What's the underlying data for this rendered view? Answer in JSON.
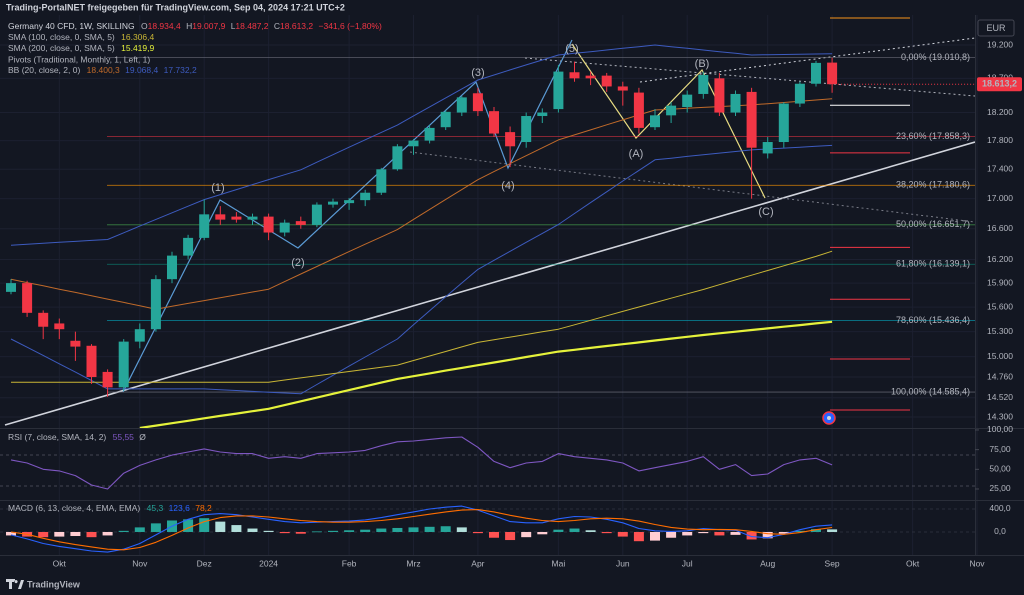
{
  "chart_data": {
    "type": "candlestick",
    "source_note": "Trading-PortalNET freigegeben für TradingView.com, Sep 04, 2024 17:21 UTC+2",
    "title": "Germany 40 CFD, 1W, SKILLING",
    "ohlc": [
      {
        "key": "O",
        "value": "18.934,4"
      },
      {
        "key": "H",
        "value": "19.007,9"
      },
      {
        "key": "L",
        "value": "18.487,2"
      },
      {
        "key": "C",
        "value": "18.613,2"
      }
    ],
    "change_label": "−341,6 (−1,80%)",
    "currency": "EUR",
    "price_label": "18.613,2",
    "brand": "TradingView",
    "log_scale": true,
    "grid": true,
    "ylim": [
      14176,
      19662
    ],
    "yticks": [
      {
        "value": 19200,
        "label": "19.200"
      },
      {
        "value": 18700,
        "label": "18.700"
      },
      {
        "value": 18200,
        "label": "18.200"
      },
      {
        "value": 17800,
        "label": "17.800"
      },
      {
        "value": 17400,
        "label": "17.400"
      },
      {
        "value": 17000,
        "label": "17.000"
      },
      {
        "value": 16600,
        "label": "16.600"
      },
      {
        "value": 16200,
        "label": "16.200"
      },
      {
        "value": 15900,
        "label": "15.900"
      },
      {
        "value": 15600,
        "label": "15.600"
      },
      {
        "value": 15300,
        "label": "15.300"
      },
      {
        "value": 15000,
        "label": "15.000"
      },
      {
        "value": 14760,
        "label": "14.760"
      },
      {
        "value": 14520,
        "label": "14.520"
      },
      {
        "value": 14300,
        "label": "14.300"
      }
    ],
    "categories": [
      null,
      null,
      null,
      "Okt",
      null,
      null,
      null,
      null,
      "Nov",
      null,
      null,
      null,
      "Dez",
      null,
      null,
      null,
      "2024",
      null,
      null,
      null,
      null,
      "Feb",
      null,
      null,
      null,
      "Mrz",
      null,
      null,
      null,
      "Apr",
      null,
      null,
      null,
      null,
      "Mai",
      null,
      null,
      null,
      "Jun",
      null,
      null,
      null,
      "Jul",
      null,
      null,
      null,
      null,
      "Aug",
      null,
      null,
      null,
      "Sep",
      null,
      null,
      null,
      null,
      "Okt",
      null,
      null,
      null,
      "Nov"
    ],
    "up_color": "#26a69a",
    "down_color": "#f23645",
    "open": [
      15790,
      15900,
      15530,
      15400,
      15190,
      15130,
      14820,
      14640,
      15180,
      15330,
      15950,
      16250,
      16480,
      16790,
      16760,
      16720,
      16760,
      16550,
      16700,
      16650,
      16920,
      16940,
      16980,
      17080,
      17400,
      17720,
      17800,
      17990,
      18200,
      18480,
      18220,
      17920,
      17780,
      18150,
      18250,
      18790,
      18740,
      18740,
      18580,
      18490,
      17990,
      18160,
      18280,
      18470,
      18700,
      18200,
      18500,
      17620,
      17780,
      18330,
      18620,
      18934.4,
      null,
      null,
      null,
      null,
      null,
      null,
      null,
      null,
      null
    ],
    "high": [
      15950,
      15930,
      15560,
      15460,
      15300,
      15150,
      14850,
      15210,
      15400,
      16000,
      16300,
      16520,
      16990,
      16900,
      16820,
      16800,
      16800,
      16720,
      16760,
      16950,
      17000,
      17010,
      17120,
      17420,
      17750,
      17820,
      18020,
      18230,
      18440,
      18560,
      18280,
      18000,
      18200,
      18260,
      18900,
      18950,
      18800,
      18780,
      18650,
      18560,
      18250,
      18350,
      18520,
      18800,
      18780,
      18520,
      18560,
      17850,
      18350,
      18650,
      18960,
      19007.9,
      null,
      null,
      null,
      null,
      null,
      null,
      null,
      null,
      null
    ],
    "low": [
      15760,
      15480,
      15210,
      15210,
      14950,
      14680,
      14530,
      14600,
      15100,
      15300,
      15900,
      16200,
      16450,
      16650,
      16680,
      16650,
      16450,
      16500,
      16600,
      16620,
      16880,
      16850,
      16900,
      17050,
      17380,
      17600,
      17760,
      17950,
      18150,
      18150,
      17850,
      17430,
      17700,
      18050,
      18200,
      18650,
      18600,
      18500,
      18300,
      17900,
      17950,
      18050,
      18200,
      18400,
      18150,
      18150,
      17000,
      17550,
      17700,
      18280,
      18580,
      18487.2,
      null,
      null,
      null,
      null,
      null,
      null,
      null,
      null,
      null
    ],
    "close": [
      15900,
      15530,
      15360,
      15330,
      15120,
      14760,
      14640,
      15180,
      15330,
      15950,
      16250,
      16480,
      16790,
      16720,
      16720,
      16760,
      16550,
      16680,
      16650,
      16920,
      16960,
      16980,
      17080,
      17400,
      17720,
      17800,
      17980,
      18210,
      18420,
      18220,
      17900,
      17720,
      18150,
      18200,
      18800,
      18700,
      18700,
      18580,
      18520,
      17980,
      18160,
      18300,
      18460,
      18750,
      18200,
      18470,
      17700,
      17780,
      18330,
      18620,
      18930,
      18613.2,
      null,
      null,
      null,
      null,
      null,
      null,
      null,
      null,
      null
    ],
    "overlays": [
      {
        "name": "SMA (100, close, 0, SMA, 5)",
        "color": "#c9b635",
        "width": 1,
        "last_value_label": "16.306,4",
        "values": [
          14700,
          14700,
          14700,
          14700,
          14700,
          14700,
          14700,
          14700,
          14700,
          14700,
          14700,
          14700,
          14700,
          14700,
          14700,
          14700,
          14700,
          14725,
          14750,
          14775,
          14800,
          14825,
          14850,
          14875,
          14900,
          14954,
          15008,
          15062,
          15116,
          15170,
          15202,
          15234,
          15266,
          15298,
          15330,
          15384,
          15439,
          15493,
          15548,
          15602,
          15657,
          15711,
          15766,
          15820,
          15880,
          15940,
          16000,
          16060,
          16120,
          16180,
          16240,
          16306.4,
          null,
          null,
          null,
          null,
          null,
          null,
          null,
          null,
          null
        ]
      },
      {
        "name": "SMA (200, close, 0, SMA, 5)",
        "color": "#e5f23b",
        "width": 2.2,
        "last_value_label": "15.419,9",
        "values": [
          null,
          null,
          null,
          null,
          null,
          null,
          null,
          null,
          14176,
          14203,
          14230,
          14257,
          14285,
          14312,
          14339,
          14366,
          14393,
          14436,
          14479,
          14522,
          14565,
          14608,
          14652,
          14695,
          14738,
          14770,
          14802,
          14835,
          14867,
          14899,
          14931,
          14963,
          14996,
          15028,
          15060,
          15082,
          15104,
          15127,
          15149,
          15171,
          15193,
          15216,
          15238,
          15260,
          15280,
          15300,
          15320,
          15340,
          15360,
          15380,
          15400,
          15419.9,
          null,
          null,
          null,
          null,
          null,
          null,
          null,
          null,
          null
        ]
      }
    ],
    "bollinger": {
      "name": "BB (20, close, 2, 0)",
      "lines": [
        {
          "color": "#c06a2a",
          "last_value_label": "18.400,3",
          "values": [
            15948,
            15907,
            15866,
            15824,
            15783,
            15742,
            15700,
            15659,
            15617,
            15575,
            15610,
            15646,
            15681,
            15717,
            15752,
            15788,
            15823,
            15919,
            16015,
            16110,
            16206,
            16302,
            16398,
            16493,
            16589,
            16723,
            16856,
            16990,
            17123,
            17257,
            17368,
            17478,
            17589,
            17699,
            17810,
            17881,
            17952,
            18024,
            18095,
            18166,
            18237,
            18249,
            18261,
            18274,
            18286,
            18298,
            18310,
            18328,
            18346,
            18364,
            18382,
            18400.3,
            null,
            null,
            null,
            null,
            null,
            null,
            null,
            null,
            null
          ]
        },
        {
          "color": "#3d5bbf",
          "last_value_label": "19.068,4",
          "values": [
            16385,
            16397,
            16410,
            16422,
            16434,
            16447,
            16459,
            16547,
            16635,
            16723,
            16811,
            16899,
            16987,
            17055,
            17122,
            17190,
            17258,
            17325,
            17393,
            17498,
            17602,
            17707,
            17811,
            17916,
            18020,
            18151,
            18282,
            18413,
            18544,
            18675,
            18750,
            18825,
            18900,
            18974,
            19049,
            19074,
            19099,
            19124,
            19150,
            19175,
            19200,
            19175,
            19150,
            19124,
            19099,
            19074,
            19049,
            19053,
            19057,
            19060,
            19064,
            19068.4,
            null,
            null,
            null,
            null,
            null,
            null,
            null,
            null,
            null
          ]
        },
        {
          "color": "#3d5bbf",
          "last_value_label": "17.732,2",
          "values": [
            15211,
            15113,
            15015,
            14916,
            14818,
            14720,
            14622,
            14622,
            14622,
            14622,
            14622,
            14622,
            14622,
            14612,
            14603,
            14593,
            14584,
            14574,
            14565,
            14673,
            14780,
            14888,
            14996,
            15103,
            15211,
            15384,
            15556,
            15729,
            15901,
            16074,
            16190,
            16306,
            16423,
            16539,
            16655,
            16801,
            16947,
            17093,
            17239,
            17385,
            17531,
            17554,
            17578,
            17601,
            17624,
            17647,
            17670,
            17682,
            17695,
            17707,
            17720,
            17732.2,
            null,
            null,
            null,
            null,
            null,
            null,
            null,
            null,
            null
          ]
        }
      ]
    },
    "pivots": {
      "name": "Pivots (Traditional, Monthly, 1, Left, 1)",
      "levels": [
        {
          "price": 19615,
          "color": "#f7931a"
        },
        {
          "price": 18306,
          "color": "#ffffff"
        },
        {
          "price": 17627,
          "color": "#f23645"
        },
        {
          "price": 16356,
          "color": "#f23645"
        },
        {
          "price": 15698,
          "color": "#f23645"
        },
        {
          "price": 14972,
          "color": "#f23645"
        },
        {
          "price": 14380,
          "color": "#f23645"
        }
      ]
    },
    "fib_levels": [
      {
        "label": "0,00% (19.010,8)",
        "price": 19010.8,
        "color": "#787b86"
      },
      {
        "label": "23,60% (17.858,3)",
        "price": 17858.3,
        "color": "#f23645"
      },
      {
        "label": "38,20% (17.180,6)",
        "price": 17180.6,
        "color": "#ff9800"
      },
      {
        "label": "50,00% (16.651,7)",
        "price": 16651.7,
        "color": "#4caf50"
      },
      {
        "label": "61,80% (16.139,1)",
        "price": 16139.1,
        "color": "#089981"
      },
      {
        "label": "78,60% (15.436,4)",
        "price": 15436.4,
        "color": "#00bcd4"
      },
      {
        "label": "100,00% (14.585,4)",
        "price": 14585.4,
        "color": "#787b86"
      }
    ],
    "wave_labels": [
      {
        "text": "(1)",
        "color": "#5b9bd5"
      },
      {
        "text": "(2)",
        "color": "#5b9bd5"
      },
      {
        "text": "(3)",
        "color": "#5b9bd5"
      },
      {
        "text": "(4)",
        "color": "#5b9bd5"
      },
      {
        "text": "(5)",
        "color": "#5b9bd5"
      },
      {
        "text": "(A)",
        "color": "#e8dc82"
      },
      {
        "text": "(B)",
        "color": "#e8dc82"
      },
      {
        "text": "(C)",
        "color": "#e8dc82"
      }
    ],
    "rsi": {
      "name": "RSI (7, close, SMA, 14, 2)",
      "value_label": "55,55",
      "ma_label": "Ø",
      "color": "#7e57c2",
      "ylim": [
        11,
        102.5
      ],
      "yticks": [
        {
          "value": 100,
          "label": "100,00"
        },
        {
          "value": 75,
          "label": "75,00"
        },
        {
          "value": 50,
          "label": "50,00"
        },
        {
          "value": 25,
          "label": "25,00"
        }
      ],
      "values": [
        62,
        58,
        50,
        48,
        42,
        30,
        25,
        45,
        55,
        62,
        68,
        72,
        76,
        72,
        70,
        70,
        64,
        66,
        64,
        70,
        71,
        72,
        74,
        80,
        85,
        86,
        88,
        90,
        91,
        78,
        60,
        52,
        58,
        60,
        70,
        66,
        64,
        62,
        58,
        48,
        52,
        56,
        60,
        66,
        50,
        56,
        42,
        44,
        56,
        62,
        64,
        55.55,
        null,
        null,
        null,
        null,
        null,
        null,
        null,
        null,
        null
      ]
    },
    "macd": {
      "name": "MACD (6, 13, close, 4, EMA, EMA)",
      "ylim": [
        -400,
        556
      ],
      "yticks": [
        {
          "value": 400,
          "label": "400,0"
        },
        {
          "value": 0,
          "label": "0,0"
        }
      ],
      "histogram": {
        "value_label": "45,3",
        "colors": [
          "#26a69a",
          "#b2dfdb",
          "#ffcdd2",
          "#ff5252"
        ],
        "values": [
          -60,
          -80,
          -90,
          -80,
          -70,
          -90,
          -60,
          20,
          80,
          150,
          200,
          220,
          240,
          180,
          120,
          60,
          20,
          -20,
          -30,
          10,
          20,
          30,
          40,
          60,
          70,
          80,
          90,
          100,
          80,
          -20,
          -100,
          -140,
          -90,
          -40,
          40,
          60,
          30,
          -20,
          -80,
          -160,
          -150,
          -100,
          -60,
          -20,
          -60,
          -50,
          -130,
          -110,
          -30,
          20,
          50,
          45.3,
          null,
          null,
          null,
          null,
          null,
          null,
          null,
          null,
          null
        ]
      },
      "macd_line": {
        "color": "#2962ff",
        "value_label": "123,6",
        "values": [
          -50,
          -120,
          -200,
          -250,
          -290,
          -330,
          -350,
          -300,
          -200,
          -50,
          100,
          220,
          300,
          320,
          300,
          260,
          220,
          180,
          160,
          170,
          180,
          190,
          210,
          250,
          300,
          350,
          400,
          430,
          450,
          380,
          280,
          180,
          160,
          160,
          230,
          270,
          260,
          220,
          160,
          60,
          20,
          10,
          20,
          60,
          40,
          30,
          -80,
          -100,
          -40,
          40,
          100,
          123.6,
          null,
          null,
          null,
          null,
          null,
          null,
          null,
          null,
          null
        ]
      },
      "signal_line": {
        "color": "#ff6d00",
        "value_label": "78,2",
        "values": [
          0,
          -40,
          -110,
          -170,
          -220,
          -260,
          -300,
          -310,
          -270,
          -180,
          -60,
          70,
          180,
          250,
          280,
          280,
          260,
          230,
          200,
          180,
          170,
          170,
          180,
          200,
          230,
          270,
          310,
          350,
          380,
          390,
          350,
          290,
          240,
          200,
          180,
          200,
          230,
          240,
          230,
          190,
          130,
          80,
          50,
          40,
          45,
          40,
          10,
          -30,
          -40,
          -10,
          40,
          78.2,
          null,
          null,
          null,
          null,
          null,
          null,
          null,
          null,
          null
        ]
      }
    }
  }
}
